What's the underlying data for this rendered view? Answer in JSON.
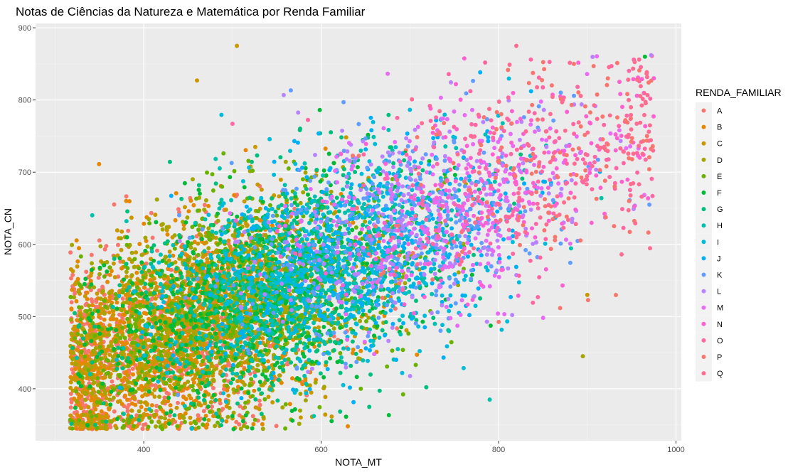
{
  "chart_data": {
    "type": "scatter",
    "title": "Notas de Ciências da Natureza e Matemática por Renda Familiar",
    "xlabel": "NOTA_MT",
    "ylabel": "NOTA_CN",
    "xlim": [
      278,
      1006
    ],
    "ylim": [
      328,
      906
    ],
    "x_ticks": [
      400,
      600,
      800,
      1000
    ],
    "y_ticks": [
      400,
      500,
      600,
      700,
      800,
      900
    ],
    "grid": true,
    "legend_position": "right",
    "legend_title": "RENDA_FAMILIAR",
    "series": [
      {
        "name": "A",
        "color": "#F8766D"
      },
      {
        "name": "B",
        "color": "#E58700"
      },
      {
        "name": "C",
        "color": "#C99800"
      },
      {
        "name": "D",
        "color": "#A3A500"
      },
      {
        "name": "E",
        "color": "#6BB100"
      },
      {
        "name": "F",
        "color": "#00BA38"
      },
      {
        "name": "G",
        "color": "#00BF7D"
      },
      {
        "name": "H",
        "color": "#00C0AF"
      },
      {
        "name": "I",
        "color": "#00BCD8"
      },
      {
        "name": "J",
        "color": "#00B0F6"
      },
      {
        "name": "K",
        "color": "#619CFF"
      },
      {
        "name": "L",
        "color": "#B983FF"
      },
      {
        "name": "M",
        "color": "#E76BF3"
      },
      {
        "name": "N",
        "color": "#FD61D1"
      },
      {
        "name": "O",
        "color": "#FF67A4"
      },
      {
        "name": "P",
        "color": "#F8766D"
      },
      {
        "name": "Q",
        "color": "#FF6C91"
      }
    ],
    "notable_points": [
      {
        "series": "C",
        "x": 505,
        "y": 875
      },
      {
        "series": "Q",
        "x": 820,
        "y": 875
      },
      {
        "series": "C",
        "x": 460,
        "y": 827
      },
      {
        "series": "O",
        "x": 500,
        "y": 767
      },
      {
        "series": "C",
        "x": 900,
        "y": 530
      },
      {
        "series": "D",
        "x": 895,
        "y": 445
      },
      {
        "series": "H",
        "x": 790,
        "y": 385
      },
      {
        "series": "B",
        "x": 630,
        "y": 348
      },
      {
        "series": "F",
        "x": 965,
        "y": 860
      },
      {
        "series": "L",
        "x": 972,
        "y": 862
      },
      {
        "series": "N",
        "x": 975,
        "y": 830
      },
      {
        "series": "K",
        "x": 970,
        "y": 655
      }
    ]
  }
}
